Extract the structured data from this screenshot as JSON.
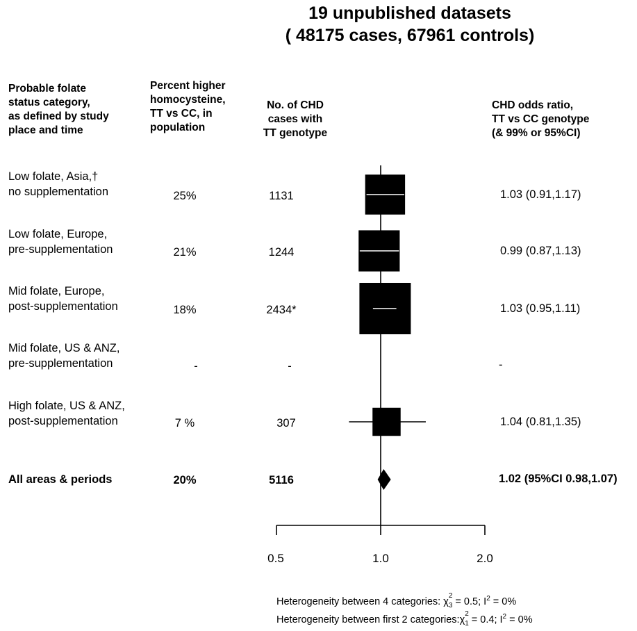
{
  "title": {
    "line1": "19 unpublished datasets",
    "line2": "( 48175 cases, 67961  controls)"
  },
  "headers": {
    "category": [
      "Probable folate",
      "status category,",
      "as defined by study",
      "place and time"
    ],
    "homocysteine": [
      "Percent higher",
      "homocysteine,",
      "TT vs CC, in",
      "population"
    ],
    "cases": [
      "No. of CHD",
      "cases with",
      "TT genotype"
    ],
    "odds": [
      "CHD odds ratio,",
      "TT vs CC genotype",
      "(& 99% or 95%CI)"
    ]
  },
  "chart_data": {
    "type": "forest",
    "xaxis": {
      "scale": "log",
      "lim": [
        0.5,
        2.0
      ],
      "ticks": [
        0.5,
        1.0,
        2.0
      ],
      "tick_labels": [
        "0.5",
        "1.0",
        "2.0"
      ]
    },
    "reference_line": 1.0,
    "rows": [
      {
        "label": [
          "Low folate, Asia,†",
          "no supplementation"
        ],
        "homocysteine": "25%",
        "cases": "1131",
        "or": 1.03,
        "lo": 0.91,
        "hi": 1.17,
        "ci_text": "1.03 (0.91,1.17)",
        "marker": "square",
        "weight": 1131
      },
      {
        "label": [
          "Low folate, Europe,",
          "pre-supplementation"
        ],
        "homocysteine": "21%",
        "cases": "1244",
        "or": 0.99,
        "lo": 0.87,
        "hi": 1.13,
        "ci_text": "0.99 (0.87,1.13)",
        "marker": "square",
        "weight": 1244
      },
      {
        "label": [
          "Mid folate, Europe,",
          "post-supplementation"
        ],
        "homocysteine": "18%",
        "cases": "2434*",
        "or": 1.03,
        "lo": 0.95,
        "hi": 1.11,
        "ci_text": "1.03 (0.95,1.11)",
        "marker": "square",
        "weight": 2434
      },
      {
        "label": [
          "Mid folate, US & ANZ,",
          "pre-supplementation"
        ],
        "homocysteine": "-",
        "cases": "-",
        "or": null,
        "lo": null,
        "hi": null,
        "ci_text": "-",
        "marker": "none",
        "weight": 0
      },
      {
        "label": [
          "High folate, US & ANZ,",
          "post-supplementation"
        ],
        "homocysteine": "7 %",
        "cases": "307",
        "or": 1.04,
        "lo": 0.81,
        "hi": 1.35,
        "ci_text": "1.04 (0.81,1.35)",
        "marker": "square",
        "weight": 307
      },
      {
        "label": [
          "All areas & periods"
        ],
        "homocysteine": "20%",
        "cases": "5116",
        "or": 1.02,
        "lo": 0.98,
        "hi": 1.07,
        "ci_text": "1.02 (95%CI 0.98,1.07)",
        "marker": "diamond",
        "weight": 0,
        "bold": true
      }
    ]
  },
  "heterogeneity": [
    {
      "text": "Heterogeneity between 4 categories: ",
      "chi_sub": "3",
      "chi_val": " = 0.5; I",
      "i_val": " = 0%"
    },
    {
      "text": "Heterogeneity between first 2 categories:",
      "chi_sub": "1",
      "chi_val": " = 0.4; I",
      "i_val": " = 0%"
    }
  ]
}
